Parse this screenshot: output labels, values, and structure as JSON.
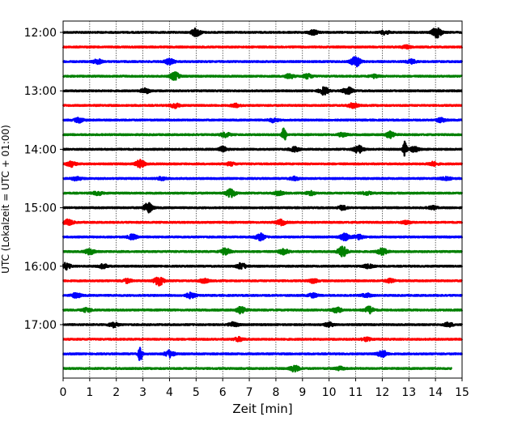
{
  "chart_data": {
    "type": "line",
    "xlabel": "Zeit  [min]",
    "ylabel": "UTC (Lokalzeit = UTC + 01:00)",
    "xlim": [
      0,
      15
    ],
    "x_ticks": [
      0,
      1,
      2,
      3,
      4,
      5,
      6,
      7,
      8,
      9,
      10,
      11,
      12,
      13,
      14,
      15
    ],
    "x_grid": true,
    "y_ticks": [
      "12:00",
      "13:00",
      "14:00",
      "15:00",
      "16:00",
      "17:00"
    ],
    "row_interval_min": 15,
    "start_time": "12:00",
    "row_color_cycle": [
      "#000000",
      "#ff0000",
      "#0000ff",
      "#008000"
    ],
    "rows": [
      {
        "time": "12:00",
        "events": [
          [
            5,
            0.5
          ],
          [
            9.4,
            0.3
          ],
          [
            12.1,
            0.25
          ],
          [
            14.05,
            0.7
          ]
        ]
      },
      {
        "time": "12:15",
        "events": [
          [
            12.9,
            0.2
          ]
        ]
      },
      {
        "time": "12:30",
        "events": [
          [
            1.3,
            0.3
          ],
          [
            4,
            0.35
          ],
          [
            11.0,
            0.7
          ],
          [
            13.1,
            0.25
          ]
        ]
      },
      {
        "time": "12:45",
        "events": [
          [
            4.2,
            0.5
          ],
          [
            8.5,
            0.3
          ],
          [
            9.2,
            0.3
          ],
          [
            11.7,
            0.2
          ]
        ]
      },
      {
        "time": "13:00",
        "events": [
          [
            3.1,
            0.3
          ],
          [
            9.8,
            0.5
          ],
          [
            10.7,
            0.5
          ]
        ]
      },
      {
        "time": "13:15",
        "events": [
          [
            4.2,
            0.3
          ],
          [
            6.5,
            0.2
          ],
          [
            10.9,
            0.3
          ]
        ]
      },
      {
        "time": "13:30",
        "events": [
          [
            0.6,
            0.3
          ],
          [
            7.9,
            0.25
          ],
          [
            14.2,
            0.25
          ]
        ]
      },
      {
        "time": "13:45",
        "events": [
          [
            6.1,
            0.3
          ],
          [
            8.3,
            1.0
          ],
          [
            10.5,
            0.25
          ],
          [
            12.3,
            0.4
          ]
        ]
      },
      {
        "time": "14:00",
        "events": [
          [
            6,
            0.3
          ],
          [
            8.7,
            0.3
          ],
          [
            11.1,
            0.5
          ],
          [
            12.85,
            1.0
          ],
          [
            13.2,
            0.3
          ]
        ]
      },
      {
        "time": "14:15",
        "events": [
          [
            0.3,
            0.35
          ],
          [
            2.9,
            0.5
          ],
          [
            6.3,
            0.2
          ],
          [
            13.9,
            0.25
          ]
        ]
      },
      {
        "time": "14:30",
        "events": [
          [
            0.5,
            0.25
          ],
          [
            3.7,
            0.2
          ],
          [
            8.7,
            0.2
          ],
          [
            14.4,
            0.25
          ]
        ]
      },
      {
        "time": "14:45",
        "events": [
          [
            1.3,
            0.25
          ],
          [
            6.3,
            0.55
          ],
          [
            8.1,
            0.25
          ],
          [
            9.3,
            0.25
          ],
          [
            11.4,
            0.2
          ]
        ]
      },
      {
        "time": "15:00",
        "events": [
          [
            3.2,
            0.6
          ],
          [
            10.5,
            0.25
          ],
          [
            13.9,
            0.2
          ]
        ]
      },
      {
        "time": "15:15",
        "events": [
          [
            0.2,
            0.35
          ],
          [
            8.2,
            0.35
          ],
          [
            12.9,
            0.2
          ]
        ]
      },
      {
        "time": "15:30",
        "events": [
          [
            2.6,
            0.3
          ],
          [
            7.4,
            0.45
          ],
          [
            10.6,
            0.45
          ],
          [
            11.1,
            0.3
          ]
        ]
      },
      {
        "time": "15:45",
        "events": [
          [
            1.0,
            0.35
          ],
          [
            6.1,
            0.45
          ],
          [
            8.3,
            0.35
          ],
          [
            10.5,
            0.7
          ],
          [
            12.0,
            0.45
          ]
        ]
      },
      {
        "time": "16:00",
        "events": [
          [
            0.1,
            0.4
          ],
          [
            1.5,
            0.25
          ],
          [
            6.7,
            0.4
          ],
          [
            11.5,
            0.3
          ]
        ]
      },
      {
        "time": "16:15",
        "events": [
          [
            2.4,
            0.25
          ],
          [
            3.6,
            0.6
          ],
          [
            5.3,
            0.25
          ],
          [
            9.4,
            0.25
          ],
          [
            12.3,
            0.25
          ]
        ]
      },
      {
        "time": "16:30",
        "events": [
          [
            0.5,
            0.3
          ],
          [
            4.8,
            0.35
          ],
          [
            9.4,
            0.25
          ],
          [
            11.4,
            0.25
          ]
        ]
      },
      {
        "time": "16:45",
        "events": [
          [
            0.9,
            0.25
          ],
          [
            6.7,
            0.45
          ],
          [
            10.3,
            0.35
          ],
          [
            11.5,
            0.45
          ]
        ]
      },
      {
        "time": "17:00",
        "events": [
          [
            1.9,
            0.3
          ],
          [
            6.4,
            0.3
          ],
          [
            10.0,
            0.25
          ],
          [
            14.5,
            0.25
          ]
        ]
      },
      {
        "time": "17:15",
        "events": [
          [
            6.6,
            0.25
          ],
          [
            11.4,
            0.2
          ]
        ]
      },
      {
        "time": "17:30",
        "events": [
          [
            2.9,
            1.0
          ],
          [
            4.0,
            0.45
          ],
          [
            12.0,
            0.45
          ]
        ]
      },
      {
        "time": "17:45",
        "events": [
          [
            8.7,
            0.4
          ],
          [
            10.4,
            0.2
          ]
        ],
        "end": 14.6
      }
    ]
  }
}
